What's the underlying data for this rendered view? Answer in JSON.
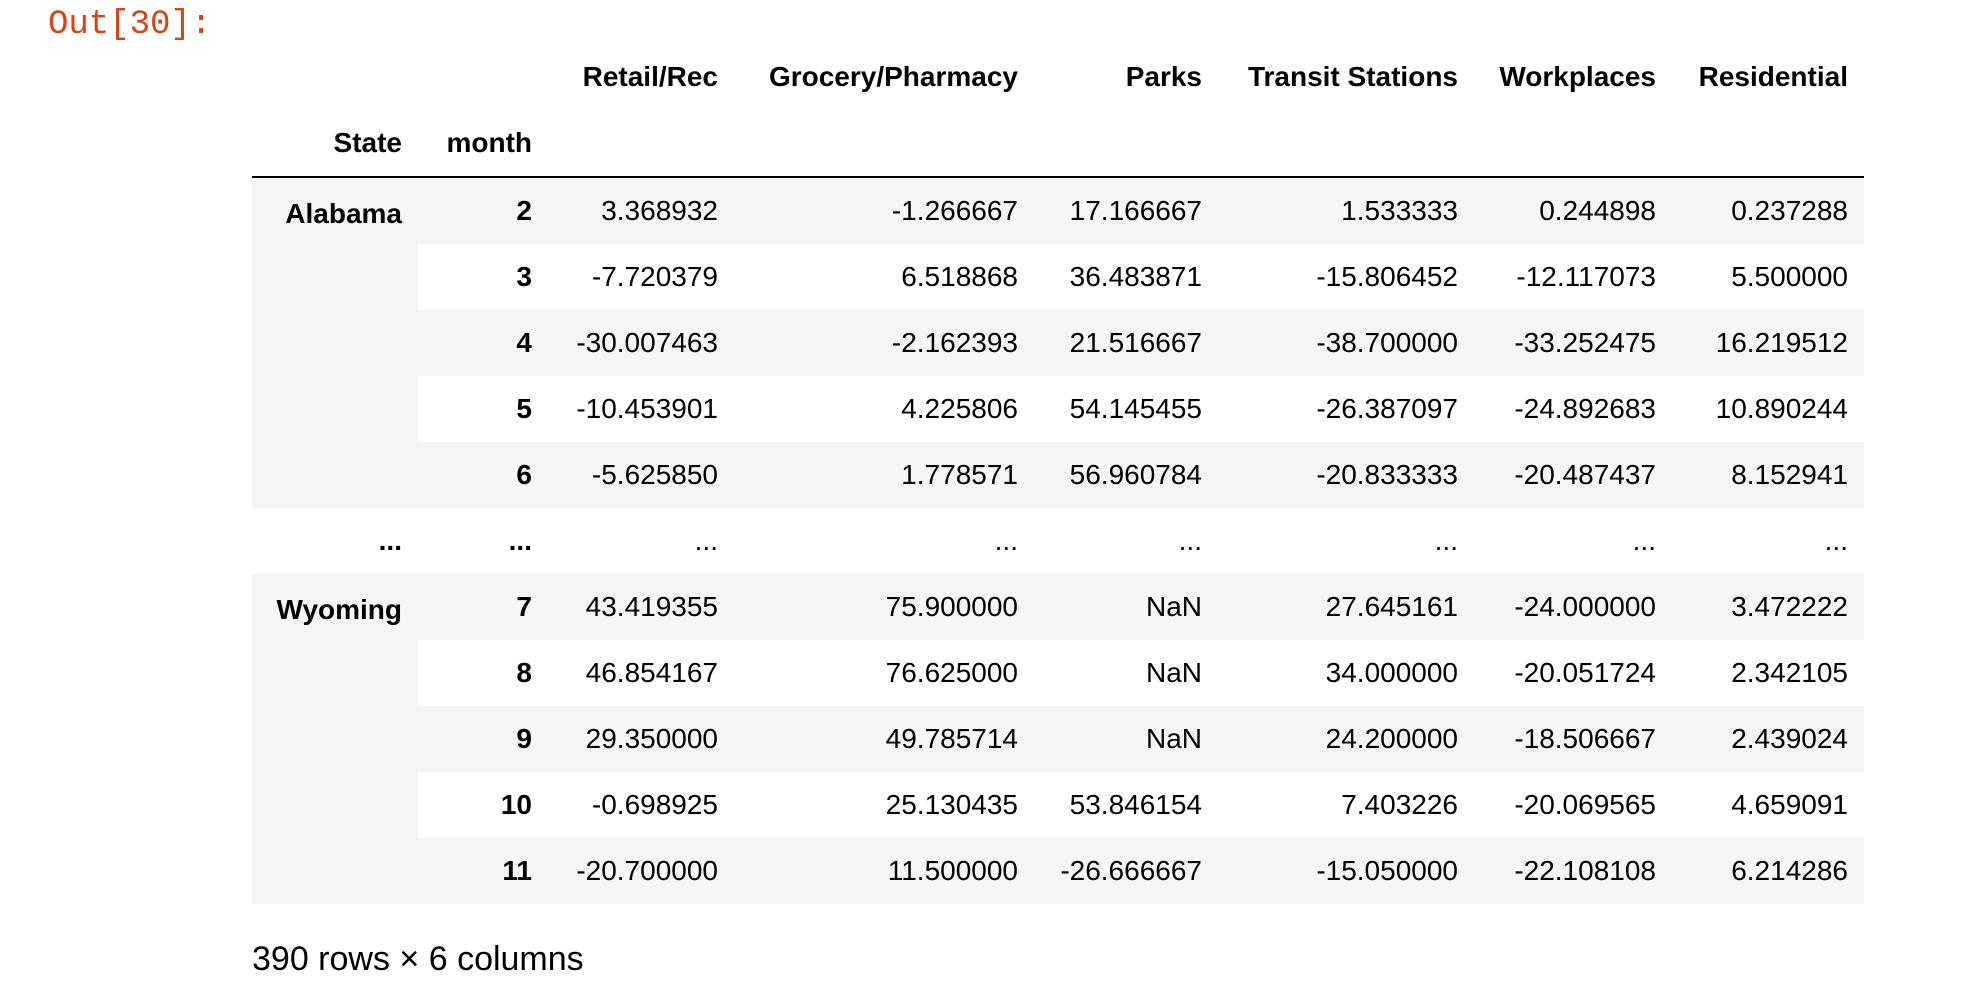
{
  "prompt": "Out[30]:",
  "columns": [
    "Retail/Rec",
    "Grocery/Pharmacy",
    "Parks",
    "Transit Stations",
    "Workplaces",
    "Residential"
  ],
  "index_names": [
    "State",
    "month"
  ],
  "groups": [
    {
      "state": "Alabama",
      "rows": [
        {
          "month": "2",
          "values": [
            "3.368932",
            "-1.266667",
            "17.166667",
            "1.533333",
            "0.244898",
            "0.237288"
          ]
        },
        {
          "month": "3",
          "values": [
            "-7.720379",
            "6.518868",
            "36.483871",
            "-15.806452",
            "-12.117073",
            "5.500000"
          ]
        },
        {
          "month": "4",
          "values": [
            "-30.007463",
            "-2.162393",
            "21.516667",
            "-38.700000",
            "-33.252475",
            "16.219512"
          ]
        },
        {
          "month": "5",
          "values": [
            "-10.453901",
            "4.225806",
            "54.145455",
            "-26.387097",
            "-24.892683",
            "10.890244"
          ]
        },
        {
          "month": "6",
          "values": [
            "-5.625850",
            "1.778571",
            "56.960784",
            "-20.833333",
            "-20.487437",
            "8.152941"
          ]
        }
      ]
    },
    {
      "state": "Wyoming",
      "rows": [
        {
          "month": "7",
          "values": [
            "43.419355",
            "75.900000",
            "NaN",
            "27.645161",
            "-24.000000",
            "3.472222"
          ]
        },
        {
          "month": "8",
          "values": [
            "46.854167",
            "76.625000",
            "NaN",
            "34.000000",
            "-20.051724",
            "2.342105"
          ]
        },
        {
          "month": "9",
          "values": [
            "29.350000",
            "49.785714",
            "NaN",
            "24.200000",
            "-18.506667",
            "2.439024"
          ]
        },
        {
          "month": "10",
          "values": [
            "-0.698925",
            "25.130435",
            "53.846154",
            "7.403226",
            "-20.069565",
            "4.659091"
          ]
        },
        {
          "month": "11",
          "values": [
            "-20.700000",
            "11.500000",
            "-26.666667",
            "-15.050000",
            "-22.108108",
            "6.214286"
          ]
        }
      ]
    }
  ],
  "ellipsis": "...",
  "shape_text": "390 rows × 6 columns"
}
